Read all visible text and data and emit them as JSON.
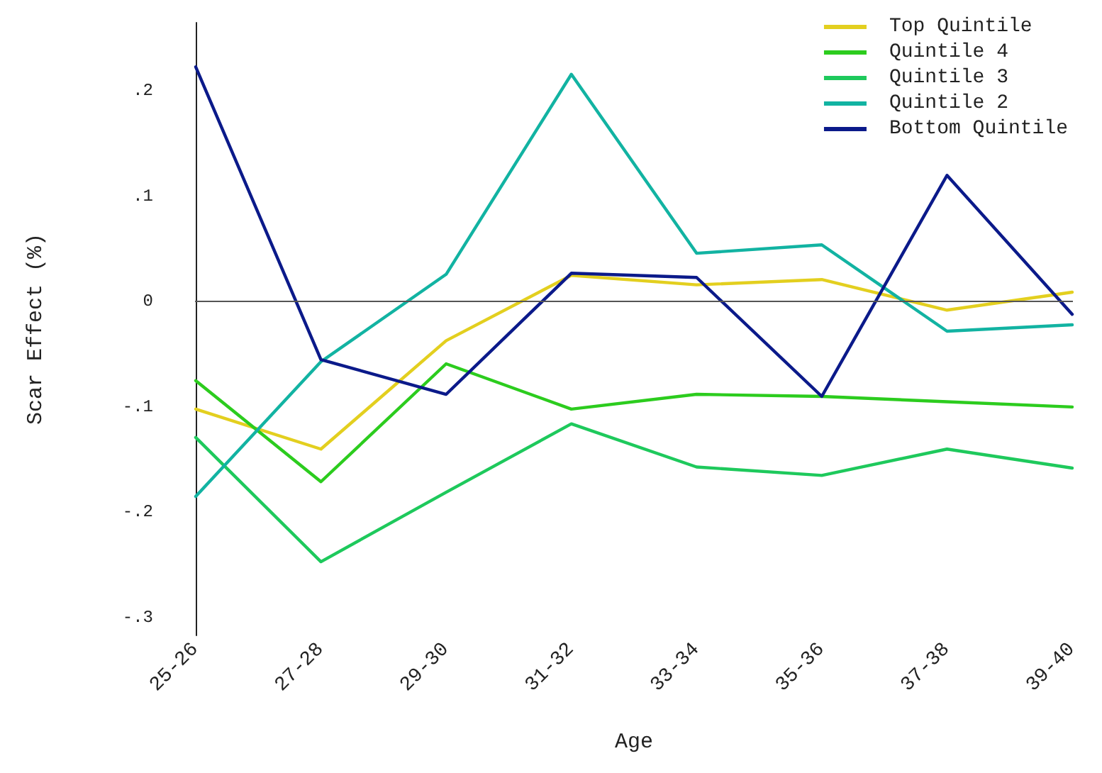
{
  "chart_data": {
    "type": "line",
    "xlabel": "Age",
    "ylabel": "Scar Effect (%)",
    "categories": [
      "25-26",
      "27-28",
      "29-30",
      "31-32",
      "33-34",
      "35-36",
      "37-38",
      "39-40"
    ],
    "series": [
      {
        "name": "Top Quintile",
        "color": "#e3cf1f",
        "values": [
          -0.102,
          -0.14,
          -0.037,
          0.025,
          0.016,
          0.021,
          -0.008,
          0.009
        ]
      },
      {
        "name": "Quintile 4",
        "color": "#2ccc1e",
        "values": [
          -0.075,
          -0.171,
          -0.059,
          -0.102,
          -0.088,
          -0.09,
          -0.095,
          -0.1
        ]
      },
      {
        "name": "Quintile 3",
        "color": "#1ec95c",
        "values": [
          -0.129,
          -0.247,
          -0.181,
          -0.116,
          -0.157,
          -0.165,
          -0.14,
          -0.158
        ]
      },
      {
        "name": "Quintile 2",
        "color": "#12b3a2",
        "values": [
          -0.185,
          -0.057,
          0.026,
          0.216,
          0.046,
          0.054,
          -0.028,
          -0.022
        ]
      },
      {
        "name": "Bottom Quintile",
        "color": "#0b1a8a",
        "values": [
          0.223,
          -0.055,
          -0.088,
          0.027,
          0.023,
          -0.09,
          0.12,
          -0.012
        ]
      }
    ],
    "ylim": [
      -0.317,
      0.265
    ],
    "yticks": [
      {
        "value": -0.3,
        "label": "-.3"
      },
      {
        "value": -0.2,
        "label": "-.2"
      },
      {
        "value": -0.1,
        "label": "-.1"
      },
      {
        "value": 0,
        "label": "0"
      },
      {
        "value": 0.1,
        "label": ".1"
      },
      {
        "value": 0.2,
        "label": ".2"
      }
    ],
    "ref_lines": [
      {
        "axis": "y",
        "value": 0,
        "color": "#555555"
      }
    ],
    "grid": false,
    "legend": "top right",
    "marker": "none",
    "line_style": "solid"
  }
}
